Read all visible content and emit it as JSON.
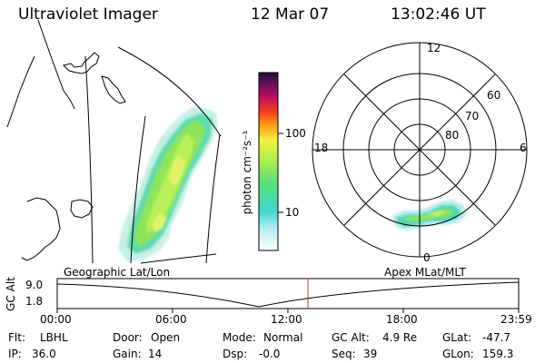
{
  "header": {
    "instrument": "Ultraviolet Imager",
    "date": "12 Mar 07",
    "time": "13:02:46 UT"
  },
  "colorbar": {
    "unit_label": "photon cm⁻²s⁻¹",
    "ticks": [
      "100",
      "10"
    ]
  },
  "polar": {
    "mlt_labels": {
      "top": "12",
      "left": "18",
      "right": "6",
      "bottom": "0"
    },
    "lat_labels": [
      "60",
      "70",
      "80"
    ]
  },
  "panels": {
    "left_label": "Geographic Lat/Lon",
    "right_label": "Apex MLat/MLT"
  },
  "timeline": {
    "axis_label": "GC Alt",
    "y_ticks": [
      "9.0",
      "1.8"
    ],
    "x_ticks": [
      "00:00",
      "06:00",
      "12:00",
      "18:00",
      "23:59"
    ],
    "cursor_time": "13:02:46"
  },
  "info": {
    "flt_label": "Flt:",
    "flt_value": "LBHL",
    "ip_label": "IP:",
    "ip_value": "36.0",
    "door_label": "Door:",
    "door_value": "Open",
    "gain_label": "Gain:",
    "gain_value": "14",
    "mode_label": "Mode:",
    "mode_value": "Normal",
    "dsp_label": "Dsp:",
    "dsp_value": "-0.0",
    "gcalt_label": "GC Alt:",
    "gcalt_value": "4.9 Re",
    "seq_label": "Seq:",
    "seq_value": "39",
    "glat_label": "GLat:",
    "glat_value": "-47.7",
    "glon_label": "GLon:",
    "glon_value": "159.3"
  },
  "colors": {
    "cursor": "#cc3333",
    "aurora_core": "#7be04a",
    "aurora_mid": "#aef060",
    "aurora_edge": "#45d6c8"
  }
}
